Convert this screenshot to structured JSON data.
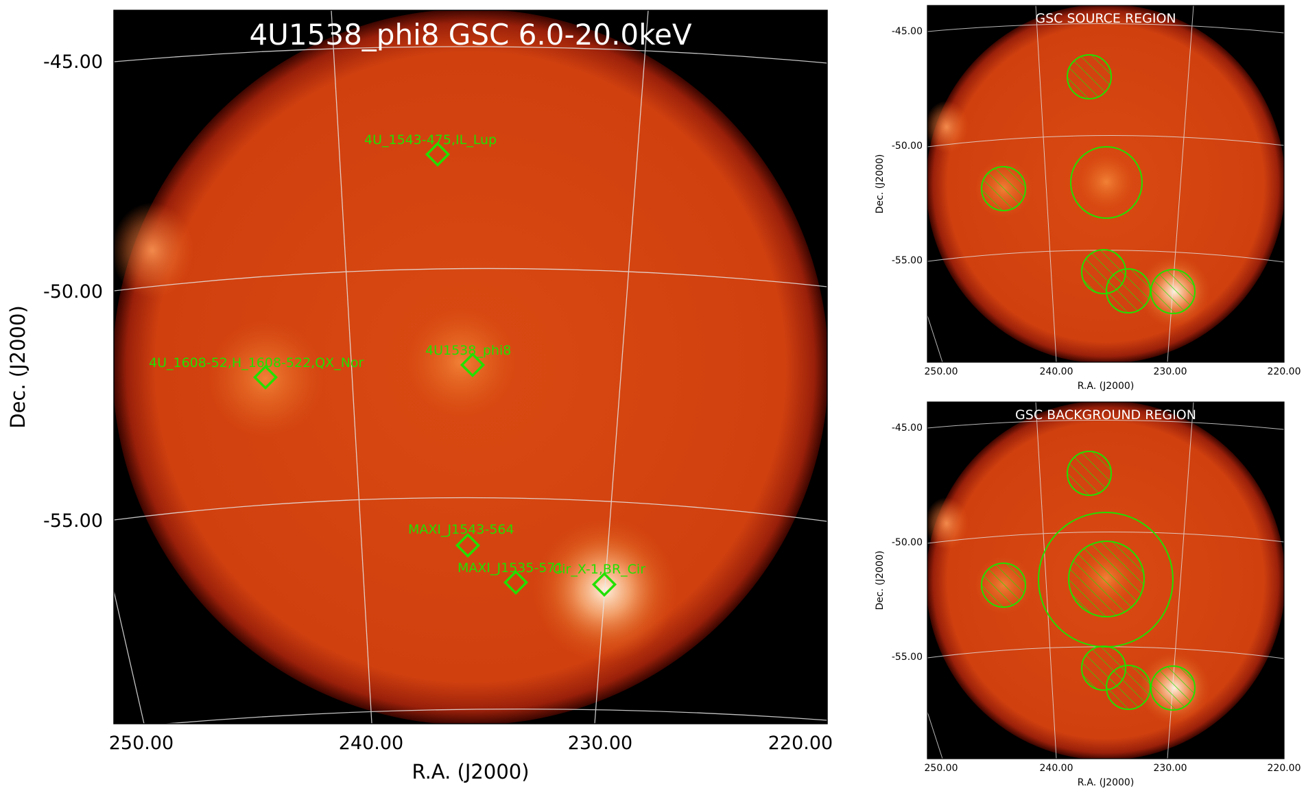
{
  "main_panel": {
    "title": "4U1538_phi8 GSC 6.0-20.0keV",
    "xlabel": "R.A. (J2000)",
    "ylabel": "Dec. (J2000)",
    "x_ticks": [
      "250.00",
      "240.00",
      "230.00",
      "220.00"
    ],
    "y_ticks": [
      "-45.00",
      "-50.00",
      "-55.00"
    ],
    "sources": [
      {
        "label": "4U_1543-475,IL_Lup"
      },
      {
        "label": "4U_1608-52,H_1608-522,QX_Nor"
      },
      {
        "label": "4U1538_phi8"
      },
      {
        "label": "MAXI_J1543-564"
      },
      {
        "label": "MAXI_J1535-571"
      },
      {
        "label": "Cir_X-1,BR_Cir"
      }
    ]
  },
  "source_panel": {
    "title": "GSC SOURCE REGION",
    "xlabel": "R.A. (J2000)",
    "ylabel": "Dec. (J2000)",
    "x_ticks": [
      "250.00",
      "240.00",
      "230.00",
      "220.00"
    ],
    "y_ticks": [
      "-45.00",
      "-50.00",
      "-55.00"
    ]
  },
  "background_panel": {
    "title": "GSC BACKGROUND REGION",
    "xlabel": "R.A. (J2000)",
    "ylabel": "Dec. (J2000)",
    "x_ticks": [
      "250.00",
      "240.00",
      "230.00",
      "220.00"
    ],
    "y_ticks": [
      "-45.00",
      "-50.00",
      "-55.00"
    ]
  },
  "colors": {
    "background": "#000000",
    "disk_base": "#d3400e",
    "disk_edge": "#6a0d02",
    "source_bright": "#fff4e4",
    "region_green": "#22e000",
    "grid": "#e6e6e6"
  }
}
